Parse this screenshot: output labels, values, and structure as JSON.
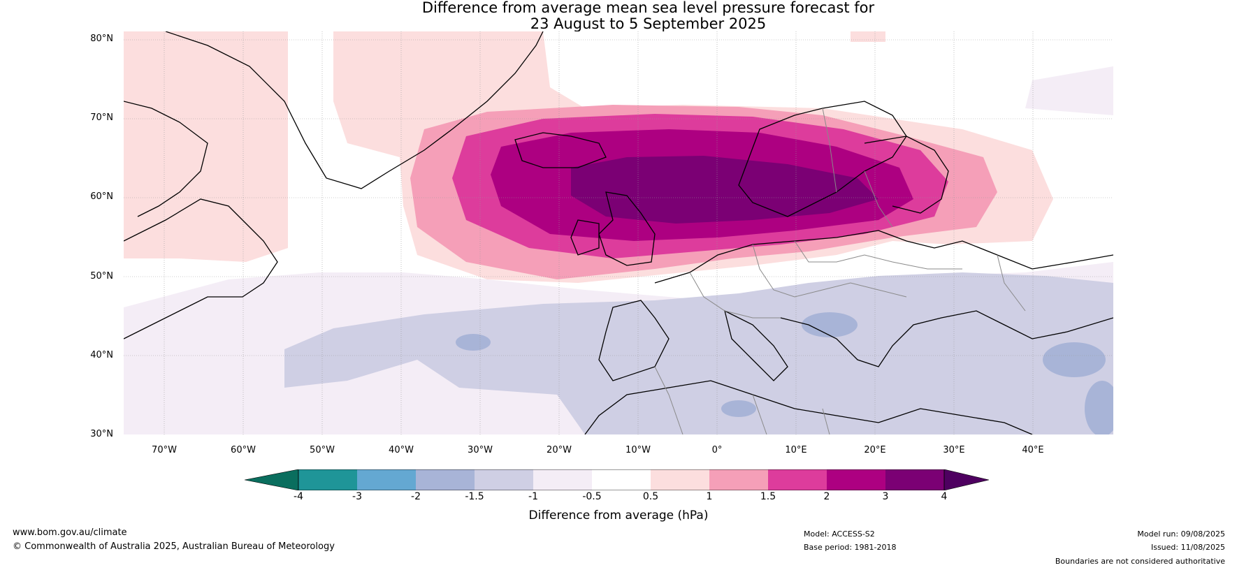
{
  "title": {
    "line1": "Difference from average mean sea level pressure forecast for",
    "line2": "23 August to 5 September 2025"
  },
  "map": {
    "lat_labels": [
      "80°N",
      "70°N",
      "60°N",
      "50°N",
      "40°N",
      "30°N"
    ],
    "lon_labels": [
      "70°W",
      "60°W",
      "50°W",
      "40°W",
      "30°W",
      "20°W",
      "10°W",
      "0°",
      "10°E",
      "20°E",
      "30°E",
      "40°E"
    ],
    "anomaly_center": "North Sea / Scandinavia",
    "colors": {
      "lt_minus4": "#0a6e5e",
      "m4_m3": "#1f9598",
      "m3_m2": "#64a8d2",
      "m2_m1_5": "#a8b4d7",
      "m1_5_m1": "#cfcfe4",
      "m1_m0_5": "#f4edf6",
      "m0_5_0_5": "#ffffff",
      "p0_5_1": "#fcdede",
      "p1_1_5": "#f59fb8",
      "p1_5_2": "#dd3c9c",
      "p2_3": "#ad0081",
      "p3_4": "#7b0074",
      "gt_4": "#4e0060"
    }
  },
  "colorbar": {
    "ticks": [
      "-4",
      "-3",
      "-2",
      "-1.5",
      "-1",
      "-0.5",
      "0.5",
      "1",
      "1.5",
      "2",
      "3",
      "4"
    ],
    "label": "Difference from average (hPa)"
  },
  "footer": {
    "website": "www.bom.gov.au/climate",
    "copyright": "© Commonwealth of Australia 2025, Australian Bureau of Meteorology",
    "model": "Model: ACCESS-S2",
    "base_period": "Base period: 1981-2018",
    "model_run": "Model run: 09/08/2025",
    "issued": "Issued: 11/08/2025",
    "disclaimer": "Boundaries are not considered authoritative"
  }
}
